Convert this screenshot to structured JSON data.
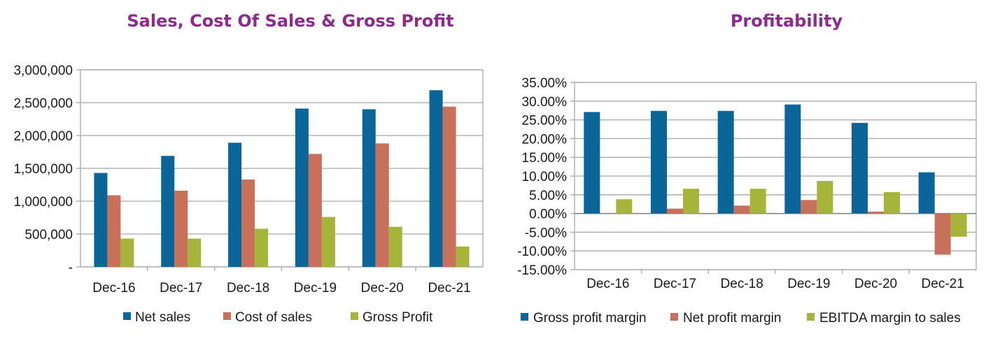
{
  "colors": {
    "blue": "#0a6699",
    "salmon": "#c8705a",
    "olive": "#a7b43a",
    "grid": "#a8a8a8",
    "title": "#8e2a8c"
  },
  "chart_data": [
    {
      "type": "bar",
      "title": "Sales, Cost Of Sales & Gross Profit",
      "categories": [
        "Dec-16",
        "Dec-17",
        "Dec-18",
        "Dec-19",
        "Dec-20",
        "Dec-21"
      ],
      "ylim": [
        0,
        3000000
      ],
      "yticks": [
        0,
        500000,
        1000000,
        1500000,
        2000000,
        2500000,
        3000000
      ],
      "ytick_labels": [
        "-",
        "500,000",
        "1,000,000",
        "1,500,000",
        "2,000,000",
        "2,500,000",
        "3,000,000"
      ],
      "grid": "horizontal",
      "legend": "bottom",
      "series": [
        {
          "name": "Net sales",
          "color": "#0a6699",
          "values": [
            1430000,
            1690000,
            1890000,
            2410000,
            2400000,
            2690000
          ]
        },
        {
          "name": "Cost of sales",
          "color": "#c8705a",
          "values": [
            1090000,
            1160000,
            1330000,
            1720000,
            1880000,
            2440000
          ]
        },
        {
          "name": "Gross Profit",
          "color": "#a7b43a",
          "values": [
            430000,
            430000,
            580000,
            760000,
            610000,
            310000
          ]
        }
      ]
    },
    {
      "type": "bar",
      "title": "Profitability",
      "categories": [
        "Dec-16",
        "Dec-17",
        "Dec-18",
        "Dec-19",
        "Dec-20",
        "Dec-21"
      ],
      "ylim": [
        -15,
        35
      ],
      "yticks": [
        -15,
        -10,
        -5,
        0,
        5,
        10,
        15,
        20,
        25,
        30,
        35
      ],
      "ytick_labels": [
        "-15.00%",
        "-10.00%",
        "-5.00%",
        "0.00%",
        "5.00%",
        "10.00%",
        "15.00%",
        "20.00%",
        "25.00%",
        "30.00%",
        "35.00%"
      ],
      "grid": "horizontal",
      "legend": "bottom",
      "series": [
        {
          "name": "Gross profit margin",
          "color": "#0a6699",
          "values": [
            27.1,
            27.4,
            27.4,
            29.1,
            24.2,
            11.0
          ]
        },
        {
          "name": "Net profit margin",
          "color": "#c8705a",
          "values": [
            0.0,
            1.3,
            2.1,
            3.6,
            0.5,
            -11.0
          ]
        },
        {
          "name": "EBITDA margin to sales",
          "color": "#a7b43a",
          "values": [
            3.8,
            6.6,
            6.6,
            8.7,
            5.7,
            -6.2
          ]
        }
      ]
    }
  ]
}
